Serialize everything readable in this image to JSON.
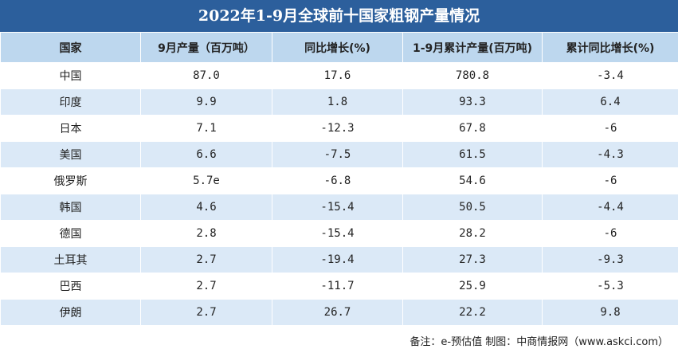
{
  "header": {
    "title": "2022年1-9月全球前十国家粗钢产量情况"
  },
  "table": {
    "columns": [
      "国家",
      "9月产量（百万吨）",
      "同比增长(%)",
      "1-9月累计产量(百万吨)",
      "累计同比增长(%)"
    ],
    "rows": [
      [
        "中国",
        "87.0",
        "17.6",
        "780.8",
        "-3.4"
      ],
      [
        "印度",
        "9.9",
        "1.8",
        "93.3",
        "6.4"
      ],
      [
        "日本",
        "7.1",
        "-12.3",
        "67.8",
        "-6"
      ],
      [
        "美国",
        "6.6",
        "-7.5",
        "61.5",
        "-4.3"
      ],
      [
        "俄罗斯",
        "5.7e",
        "-6.8",
        "54.6",
        "-6"
      ],
      [
        "韩国",
        "4.6",
        "-15.4",
        "50.5",
        "-4.4"
      ],
      [
        "德国",
        "2.8",
        "-15.4",
        "28.2",
        "-6"
      ],
      [
        "土耳其",
        "2.7",
        "-19.4",
        "27.3",
        "-9.3"
      ],
      [
        "巴西",
        "2.7",
        "-11.7",
        "25.9",
        "-5.3"
      ],
      [
        "伊朗",
        "2.7",
        "26.7",
        "22.2",
        "9.8"
      ]
    ]
  },
  "footer": {
    "note": "备注：e-预估值  制图：中商情报网（www.askci.com）"
  }
}
